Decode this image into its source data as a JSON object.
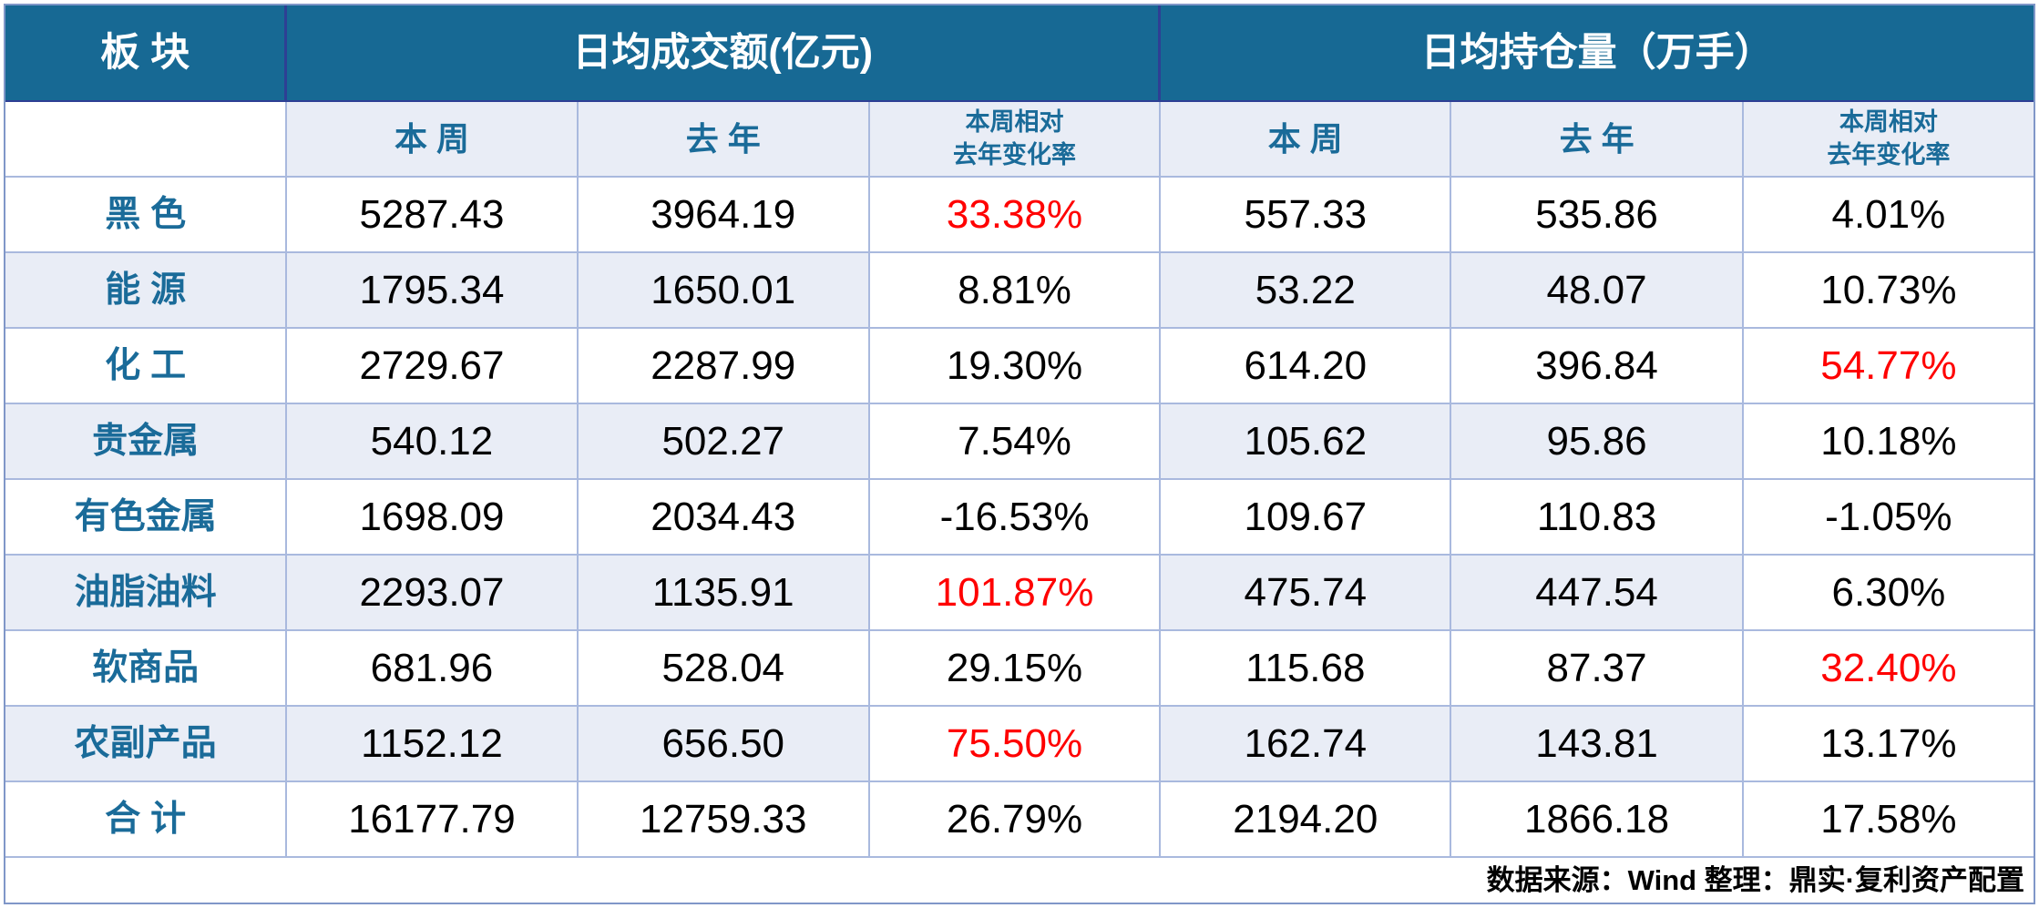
{
  "colors": {
    "header_bg": "#176994",
    "header_divider": "#2e3f94",
    "accent_text": "#1a6b99",
    "stripe_bg": "#e9edf6",
    "grid_border": "#a9b9de",
    "outer_border": "#8097c8",
    "highlight_red": "#ff0000"
  },
  "header": {
    "sector": "板 块",
    "group_turnover": "日均成交额(亿元)",
    "group_position": "日均持仓量（万手）"
  },
  "subheader": {
    "week": "本 周",
    "year": "去 年",
    "change_line1": "本周相对",
    "change_line2": "去年变化率"
  },
  "table": {
    "rows": [
      {
        "sector": "黑 色",
        "tw": "5287.43",
        "ty": "3964.19",
        "tc": "33.38%",
        "tc_red": true,
        "pw": "557.33",
        "py": "535.86",
        "pc": "4.01%",
        "pc_red": false
      },
      {
        "sector": "能 源",
        "tw": "1795.34",
        "ty": "1650.01",
        "tc": "8.81%",
        "tc_red": false,
        "pw": "53.22",
        "py": "48.07",
        "pc": "10.73%",
        "pc_red": false
      },
      {
        "sector": "化 工",
        "tw": "2729.67",
        "ty": "2287.99",
        "tc": "19.30%",
        "tc_red": false,
        "pw": "614.20",
        "py": "396.84",
        "pc": "54.77%",
        "pc_red": true
      },
      {
        "sector": "贵金属",
        "tw": "540.12",
        "ty": "502.27",
        "tc": "7.54%",
        "tc_red": false,
        "pw": "105.62",
        "py": "95.86",
        "pc": "10.18%",
        "pc_red": false
      },
      {
        "sector": "有色金属",
        "tw": "1698.09",
        "ty": "2034.43",
        "tc": "-16.53%",
        "tc_red": false,
        "pw": "109.67",
        "py": "110.83",
        "pc": "-1.05%",
        "pc_red": false
      },
      {
        "sector": "油脂油料",
        "tw": "2293.07",
        "ty": "1135.91",
        "tc": "101.87%",
        "tc_red": true,
        "pw": "475.74",
        "py": "447.54",
        "pc": "6.30%",
        "pc_red": false
      },
      {
        "sector": "软商品",
        "tw": "681.96",
        "ty": "528.04",
        "tc": "29.15%",
        "tc_red": false,
        "pw": "115.68",
        "py": "87.37",
        "pc": "32.40%",
        "pc_red": true
      },
      {
        "sector": "农副产品",
        "tw": "1152.12",
        "ty": "656.50",
        "tc": "75.50%",
        "tc_red": true,
        "pw": "162.74",
        "py": "143.81",
        "pc": "13.17%",
        "pc_red": false
      },
      {
        "sector": "合 计",
        "tw": "16177.79",
        "ty": "12759.33",
        "tc": "26.79%",
        "tc_red": false,
        "pw": "2194.20",
        "py": "1866.18",
        "pc": "17.58%",
        "pc_red": false
      }
    ]
  },
  "footer": {
    "note": "数据来源：Wind  整理：鼎实·复利资产配置"
  },
  "chart_data": {
    "type": "table",
    "title": "",
    "column_groups": [
      "板块",
      "日均成交额(亿元)",
      "日均持仓量（万手）"
    ],
    "columns": [
      "板块",
      "成交额-本周",
      "成交额-去年",
      "成交额-本周相对去年变化率",
      "持仓量-本周",
      "持仓量-去年",
      "持仓量-本周相对去年变化率"
    ],
    "rows": [
      [
        "黑色",
        5287.43,
        3964.19,
        "33.38%",
        557.33,
        535.86,
        "4.01%"
      ],
      [
        "能源",
        1795.34,
        1650.01,
        "8.81%",
        53.22,
        48.07,
        "10.73%"
      ],
      [
        "化工",
        2729.67,
        2287.99,
        "19.30%",
        614.2,
        396.84,
        "54.77%"
      ],
      [
        "贵金属",
        540.12,
        502.27,
        "7.54%",
        105.62,
        95.86,
        "10.18%"
      ],
      [
        "有色金属",
        1698.09,
        2034.43,
        "-16.53%",
        109.67,
        110.83,
        "-1.05%"
      ],
      [
        "油脂油料",
        2293.07,
        1135.91,
        "101.87%",
        475.74,
        447.54,
        "6.30%"
      ],
      [
        "软商品",
        681.96,
        528.04,
        "29.15%",
        115.68,
        87.37,
        "32.40%"
      ],
      [
        "农副产品",
        1152.12,
        656.5,
        "75.50%",
        162.74,
        143.81,
        "13.17%"
      ],
      [
        "合计",
        16177.79,
        12759.33,
        "26.79%",
        2194.2,
        1866.18,
        "17.58%"
      ]
    ],
    "red_highlighted_values": [
      "33.38%",
      "54.77%",
      "101.87%",
      "32.40%",
      "75.50%"
    ],
    "source_note": "数据来源：Wind  整理：鼎实·复利资产配置"
  }
}
